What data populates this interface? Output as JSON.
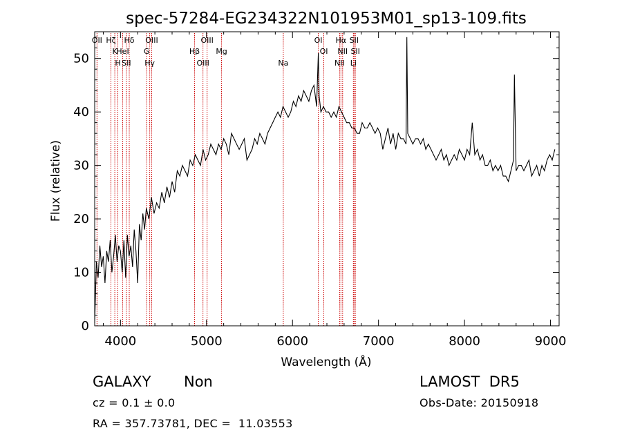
{
  "chart_data": {
    "type": "line",
    "title": "spec-57284-EG234322N101953M01_sp13-109.fits",
    "xlabel": "Wavelength (Å)",
    "ylabel": "Flux (relative)",
    "xlim": [
      3700,
      9100
    ],
    "ylim": [
      0,
      55
    ],
    "x_ticks": [
      4000,
      5000,
      6000,
      7000,
      8000,
      9000
    ],
    "y_ticks": [
      0,
      10,
      20,
      30,
      40,
      50
    ],
    "grid": false,
    "series": [
      {
        "x": [
          3700,
          3720,
          3740,
          3760,
          3780,
          3800,
          3820,
          3840,
          3860,
          3880,
          3900,
          3920,
          3940,
          3960,
          3980,
          4000,
          4020,
          4040,
          4060,
          4080,
          4100,
          4120,
          4140,
          4160,
          4180,
          4200,
          4220,
          4240,
          4260,
          4280,
          4300,
          4330,
          4360,
          4390,
          4420,
          4450,
          4480,
          4510,
          4540,
          4570,
          4600,
          4630,
          4660,
          4690,
          4720,
          4750,
          4780,
          4810,
          4840,
          4870,
          4900,
          4930,
          4960,
          4990,
          5020,
          5050,
          5080,
          5110,
          5140,
          5170,
          5200,
          5230,
          5260,
          5290,
          5320,
          5350,
          5380,
          5410,
          5440,
          5470,
          5500,
          5530,
          5560,
          5590,
          5620,
          5650,
          5680,
          5710,
          5740,
          5770,
          5800,
          5830,
          5860,
          5890,
          5920,
          5950,
          5980,
          6010,
          6040,
          6070,
          6100,
          6130,
          6160,
          6190,
          6220,
          6250,
          6280,
          6300,
          6310,
          6330,
          6360,
          6390,
          6420,
          6450,
          6480,
          6510,
          6540,
          6570,
          6600,
          6630,
          6660,
          6690,
          6720,
          6750,
          6780,
          6810,
          6840,
          6870,
          6900,
          6930,
          6960,
          6990,
          7020,
          7050,
          7080,
          7110,
          7140,
          7170,
          7200,
          7230,
          7260,
          7290,
          7320,
          7330,
          7340,
          7370,
          7400,
          7430,
          7460,
          7490,
          7520,
          7550,
          7580,
          7610,
          7640,
          7670,
          7700,
          7730,
          7760,
          7790,
          7820,
          7850,
          7880,
          7910,
          7940,
          7970,
          8000,
          8030,
          8060,
          8090,
          8120,
          8150,
          8180,
          8210,
          8240,
          8270,
          8300,
          8330,
          8360,
          8390,
          8420,
          8450,
          8480,
          8510,
          8540,
          8570,
          8580,
          8600,
          8630,
          8660,
          8690,
          8720,
          8750,
          8780,
          8810,
          8840,
          8870,
          8900,
          8930,
          8960,
          8990,
          9020,
          9050
        ],
        "values": [
          0.5,
          12,
          9,
          15,
          11,
          13,
          8,
          14,
          12,
          16,
          10,
          13,
          17,
          12,
          15,
          14,
          10,
          16,
          9,
          17,
          13,
          15,
          11,
          18,
          14,
          8,
          19,
          16,
          21,
          18,
          22,
          20,
          24,
          21,
          23,
          22,
          25,
          23,
          26,
          24,
          27,
          25,
          29,
          28,
          30,
          29,
          28,
          31,
          30,
          32,
          31,
          30,
          33,
          31,
          32,
          34,
          33,
          32,
          34,
          33,
          35,
          34,
          32,
          36,
          35,
          34,
          33,
          34,
          35,
          31,
          32,
          33,
          35,
          34,
          36,
          35,
          34,
          36,
          37,
          38,
          39,
          40,
          39,
          41,
          40,
          39,
          40,
          42,
          41,
          43,
          42,
          44,
          43,
          42,
          44,
          45,
          41,
          51,
          43,
          40,
          41,
          40,
          40,
          39,
          40,
          39,
          41,
          40,
          39,
          38,
          38,
          37,
          37,
          36,
          36,
          38,
          37,
          37,
          38,
          37,
          36,
          37,
          36,
          33,
          35,
          37,
          34,
          36,
          33,
          36,
          35,
          35,
          34,
          54,
          36,
          35,
          34,
          35,
          35,
          34,
          35,
          33,
          34,
          33,
          32,
          31,
          32,
          33,
          31,
          32,
          30,
          31,
          32,
          31,
          33,
          32,
          31,
          33,
          32,
          38,
          32,
          33,
          31,
          32,
          30,
          30,
          31,
          29,
          30,
          29,
          30,
          28,
          28,
          27,
          29,
          31,
          47,
          29,
          30,
          30,
          29,
          30,
          31,
          28,
          29,
          30,
          28,
          30,
          29,
          31,
          32,
          31,
          33
        ],
        "color": "#000000"
      }
    ],
    "lines": [
      {
        "x": 3727,
        "label": "OII"
      },
      {
        "x": 3934,
        "label": "K"
      },
      {
        "x": 3969,
        "label": "H"
      },
      {
        "x": 3889,
        "label": "Hζ"
      },
      {
        "x": 4026,
        "label": "HeI"
      },
      {
        "x": 4069,
        "label": "SII"
      },
      {
        "x": 4102,
        "label": "Hδ"
      },
      {
        "x": 4304,
        "label": "G"
      },
      {
        "x": 4340,
        "label": "Hγ"
      },
      {
        "x": 4363,
        "label": "OIII"
      },
      {
        "x": 4861,
        "label": "Hβ"
      },
      {
        "x": 4959,
        "label": "OIII"
      },
      {
        "x": 5007,
        "label": "OIII"
      },
      {
        "x": 5175,
        "label": "Mg"
      },
      {
        "x": 5893,
        "label": "Na"
      },
      {
        "x": 6300,
        "label": "OI"
      },
      {
        "x": 6364,
        "label": "OI"
      },
      {
        "x": 6548,
        "label": "NII"
      },
      {
        "x": 6563,
        "label": "Hα"
      },
      {
        "x": 6583,
        "label": "NII"
      },
      {
        "x": 6708,
        "label": "Li"
      },
      {
        "x": 6716,
        "label": "SII"
      },
      {
        "x": 6731,
        "label": "SII"
      }
    ],
    "line_color": "#cc0000"
  },
  "info": {
    "class": "GALAXY",
    "subclass": "Non",
    "survey": "LAMOST  DR5",
    "cz": "cz = 0.1 ± 0.0",
    "obs_date": "Obs-Date: 20150918",
    "coords": "RA = 357.73781, DEC =  11.03553"
  }
}
